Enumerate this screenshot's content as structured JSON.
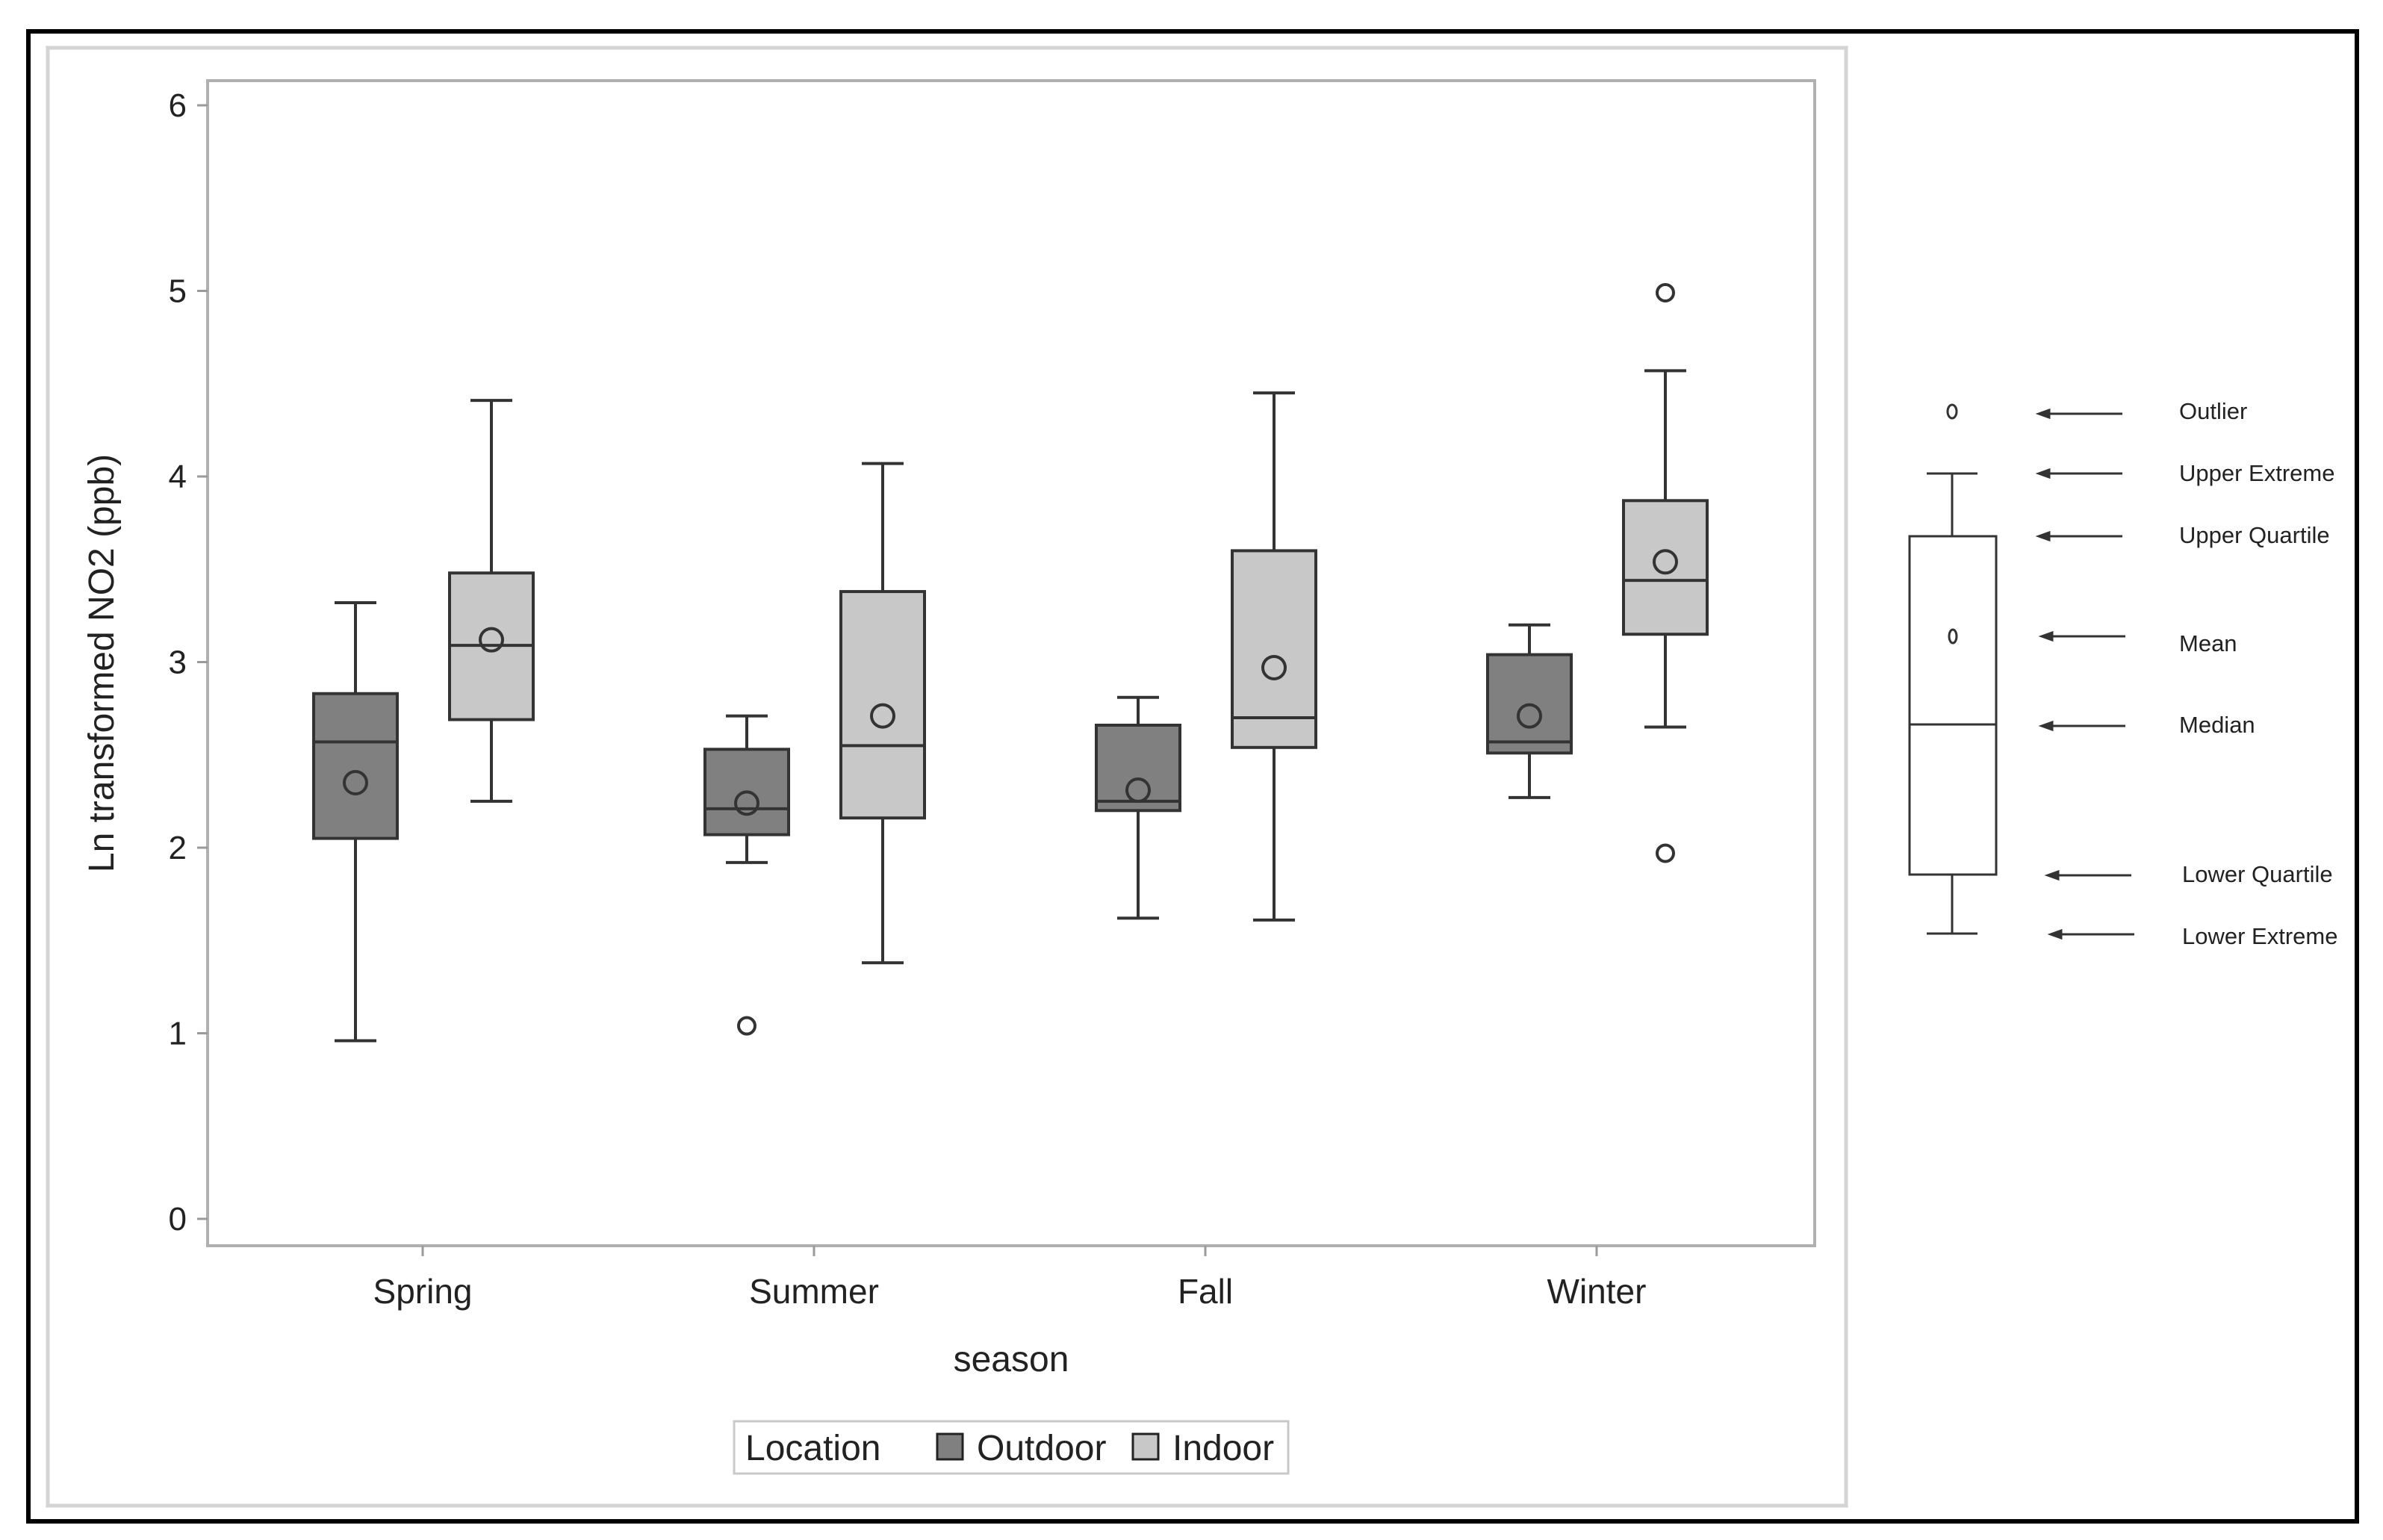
{
  "chart_data": {
    "type": "boxplot",
    "title": "",
    "xlabel": "season",
    "ylabel": "Ln transformed NO2 (ppb)",
    "ylim": [
      0,
      6
    ],
    "yticks": [
      0,
      1,
      2,
      3,
      4,
      5,
      6
    ],
    "grid": false,
    "categories": [
      "Spring",
      "Summer",
      "Fall",
      "Winter"
    ],
    "legend": {
      "title": "Location",
      "placement": "bottom-center",
      "entries": [
        {
          "name": "Outdoor",
          "color": "#808080"
        },
        {
          "name": "Indoor",
          "color": "#c8c8c8"
        }
      ]
    },
    "series": [
      {
        "name": "Outdoor",
        "color": "#808080",
        "boxes": [
          {
            "category": "Spring",
            "lower_extreme": 0.96,
            "q1": 2.05,
            "median": 2.57,
            "q3": 2.83,
            "upper_extreme": 3.32,
            "mean": 2.35,
            "outliers": []
          },
          {
            "category": "Summer",
            "lower_extreme": 1.92,
            "q1": 2.07,
            "median": 2.21,
            "q3": 2.53,
            "upper_extreme": 2.71,
            "mean": 2.24,
            "outliers": [
              1.04
            ]
          },
          {
            "category": "Fall",
            "lower_extreme": 1.62,
            "q1": 2.2,
            "median": 2.25,
            "q3": 2.66,
            "upper_extreme": 2.81,
            "mean": 2.31,
            "outliers": []
          },
          {
            "category": "Winter",
            "lower_extreme": 2.27,
            "q1": 2.51,
            "median": 2.57,
            "q3": 3.04,
            "upper_extreme": 3.2,
            "mean": 2.71,
            "outliers": []
          }
        ]
      },
      {
        "name": "Indoor",
        "color": "#c8c8c8",
        "boxes": [
          {
            "category": "Spring",
            "lower_extreme": 2.25,
            "q1": 2.69,
            "median": 3.09,
            "q3": 3.48,
            "upper_extreme": 4.41,
            "mean": 3.12,
            "outliers": []
          },
          {
            "category": "Summer",
            "lower_extreme": 1.38,
            "q1": 2.16,
            "median": 2.55,
            "q3": 3.38,
            "upper_extreme": 4.07,
            "mean": 2.71,
            "outliers": []
          },
          {
            "category": "Fall",
            "lower_extreme": 1.61,
            "q1": 2.54,
            "median": 2.7,
            "q3": 3.6,
            "upper_extreme": 4.45,
            "mean": 2.97,
            "outliers": []
          },
          {
            "category": "Winter",
            "lower_extreme": 2.65,
            "q1": 3.15,
            "median": 3.44,
            "q3": 3.87,
            "upper_extreme": 4.57,
            "mean": 3.54,
            "outliers": [
              4.99,
              1.97
            ]
          }
        ]
      }
    ]
  },
  "key": {
    "labels": [
      "Outlier",
      "Upper Extreme",
      "Upper Quartile",
      "Mean",
      "Median",
      "Lower Quartile",
      "Lower Extreme"
    ]
  }
}
